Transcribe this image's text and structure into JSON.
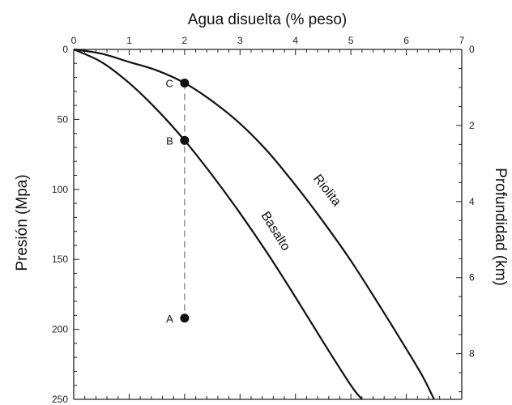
{
  "chart_data": {
    "type": "line",
    "xlabel": "Agua disuelta (% peso)",
    "ylabel": "Presión (Mpa)",
    "y2label": "Profundidad (km)",
    "xlim": [
      0,
      7
    ],
    "ylim": [
      0,
      250
    ],
    "y2lim": [
      0,
      9.2
    ],
    "x_ticks": [
      "0",
      "1",
      "2",
      "3",
      "4",
      "5",
      "6",
      "7"
    ],
    "y_ticks": [
      "0",
      "50",
      "100",
      "150",
      "200",
      "250"
    ],
    "y2_ticks": [
      "0",
      "2",
      "4",
      "6",
      "8"
    ],
    "grid": false,
    "series": [
      {
        "name": "Riolita",
        "x": [
          0,
          0.5,
          1.0,
          1.5,
          2.0,
          2.5,
          3.0,
          3.5,
          4.0,
          4.5,
          5.0,
          5.5,
          6.0,
          6.3,
          6.5
        ],
        "y": [
          0,
          3,
          9,
          15,
          24,
          37,
          53,
          73,
          97,
          123,
          151,
          182,
          214,
          234,
          250
        ]
      },
      {
        "name": "Basalto",
        "x": [
          0,
          0.5,
          1.0,
          1.5,
          2.0,
          2.5,
          3.0,
          3.5,
          4.0,
          4.5,
          5.0,
          5.2
        ],
        "y": [
          0,
          9,
          24,
          43,
          65,
          90,
          117,
          146,
          177,
          209,
          240,
          250
        ]
      }
    ],
    "points": [
      {
        "label": "C",
        "x": 2.0,
        "y": 24
      },
      {
        "label": "B",
        "x": 2.0,
        "y": 65
      },
      {
        "label": "A",
        "x": 2.0,
        "y": 192
      }
    ]
  }
}
